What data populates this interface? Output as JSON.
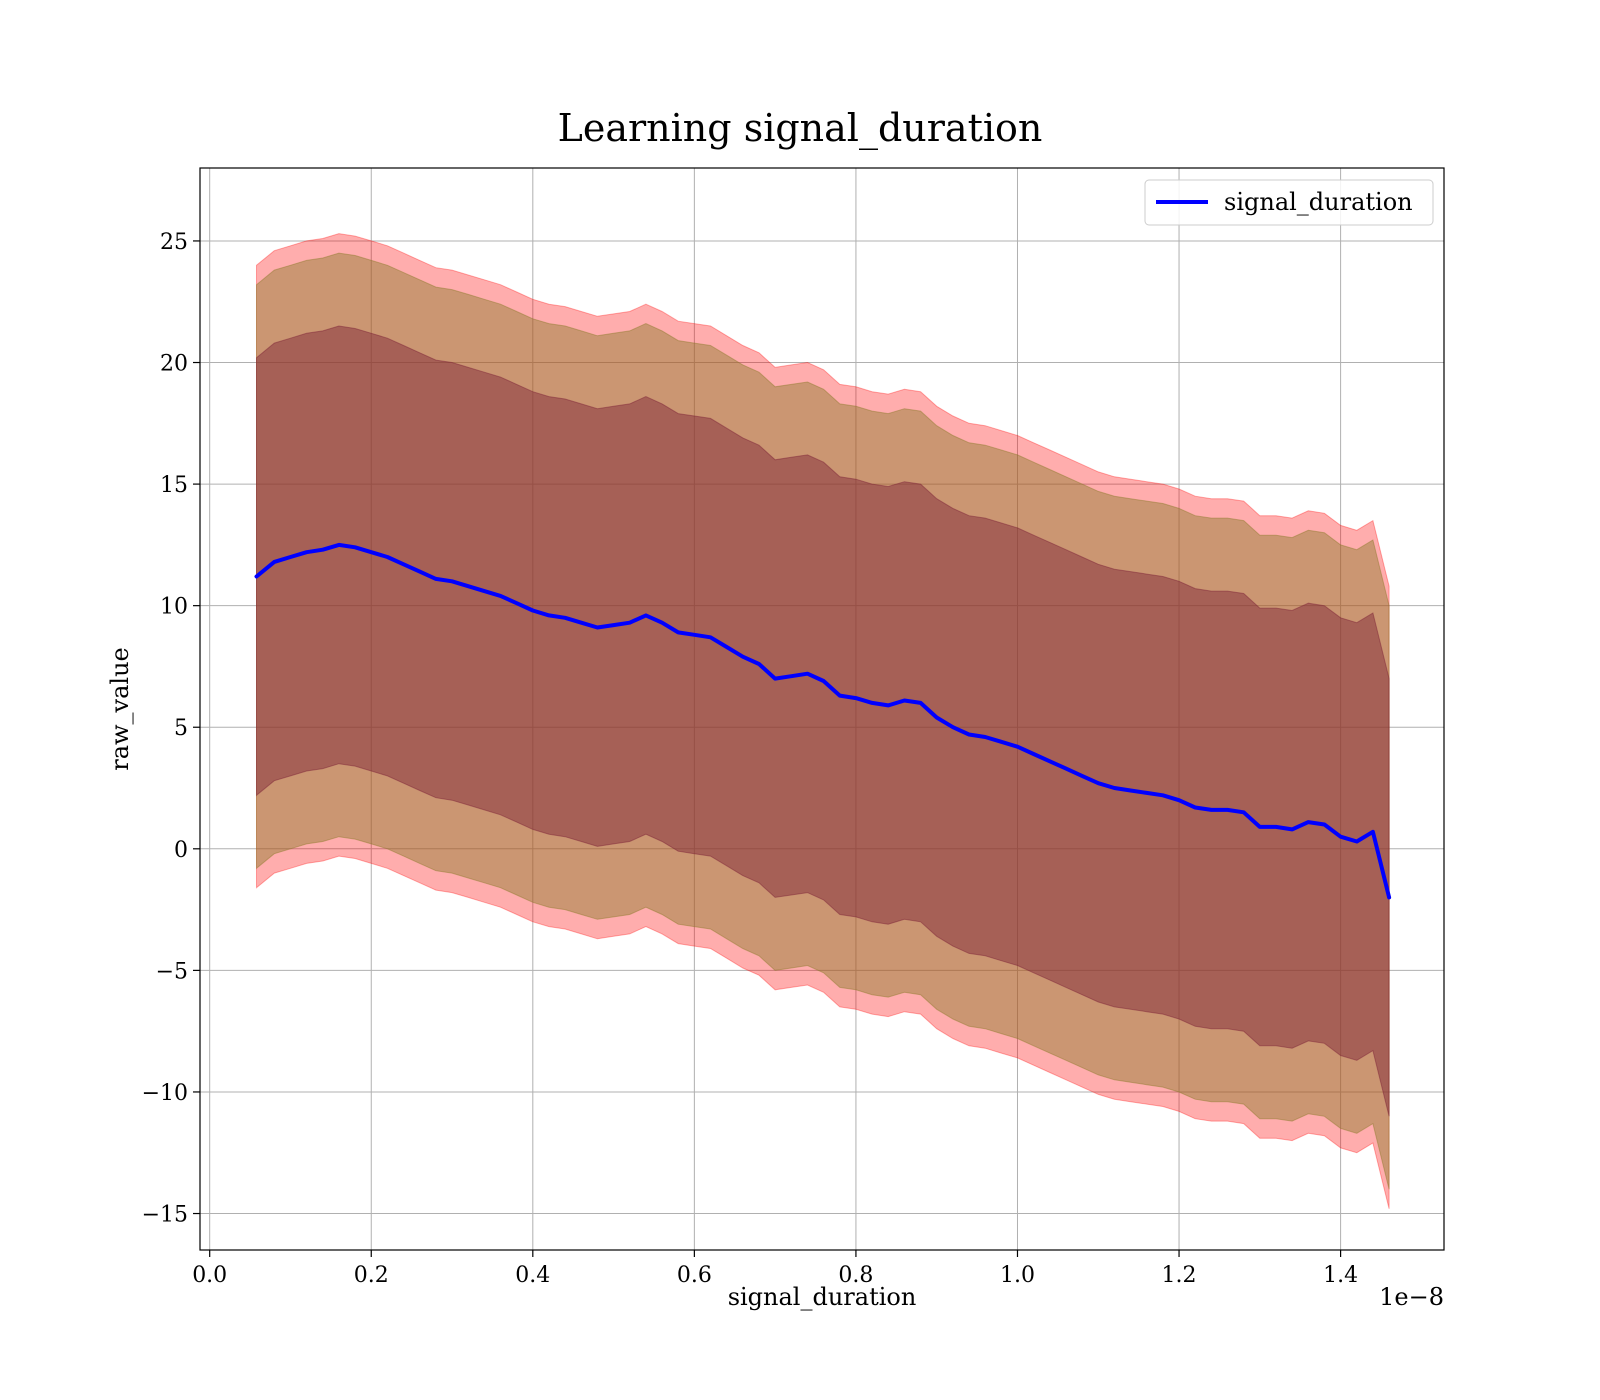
{
  "chart_data": {
    "type": "area",
    "title": "Learning signal_duration",
    "xlabel": "signal_duration",
    "ylabel": "raw_value",
    "x_offset_label": "1e−8",
    "xlim": [
      -0.012,
      1.528
    ],
    "ylim": [
      -16.5,
      28
    ],
    "x_ticks": [
      0.0,
      0.2,
      0.4,
      0.6,
      0.8,
      1.0,
      1.2,
      1.4
    ],
    "x_tick_labels": [
      "0.0",
      "0.2",
      "0.4",
      "0.6",
      "0.8",
      "1.0",
      "1.2",
      "1.4"
    ],
    "y_ticks": [
      -15,
      -10,
      -5,
      0,
      5,
      10,
      15,
      20,
      25
    ],
    "y_tick_labels": [
      "−15",
      "−10",
      "−5",
      "0",
      "5",
      "10",
      "15",
      "20",
      "25"
    ],
    "grid": true,
    "legend": {
      "position": "top-right",
      "entries": [
        "signal_duration"
      ]
    },
    "series": [
      {
        "name": "signal_duration",
        "color": "#0000ff",
        "x": [
          0.058,
          0.08,
          0.1,
          0.12,
          0.14,
          0.16,
          0.18,
          0.2,
          0.22,
          0.24,
          0.26,
          0.28,
          0.3,
          0.32,
          0.34,
          0.36,
          0.38,
          0.4,
          0.42,
          0.44,
          0.46,
          0.48,
          0.5,
          0.52,
          0.54,
          0.56,
          0.58,
          0.6,
          0.62,
          0.64,
          0.66,
          0.68,
          0.7,
          0.72,
          0.74,
          0.76,
          0.78,
          0.8,
          0.82,
          0.84,
          0.86,
          0.88,
          0.9,
          0.92,
          0.94,
          0.96,
          0.98,
          1.0,
          1.02,
          1.04,
          1.06,
          1.08,
          1.1,
          1.12,
          1.14,
          1.16,
          1.18,
          1.2,
          1.22,
          1.24,
          1.26,
          1.28,
          1.3,
          1.32,
          1.34,
          1.36,
          1.38,
          1.4,
          1.42,
          1.44,
          1.46
        ],
        "y": [
          11.2,
          11.8,
          12.0,
          12.2,
          12.3,
          12.5,
          12.4,
          12.2,
          12.0,
          11.7,
          11.4,
          11.1,
          11.0,
          10.8,
          10.6,
          10.4,
          10.1,
          9.8,
          9.6,
          9.5,
          9.3,
          9.1,
          9.2,
          9.3,
          9.6,
          9.3,
          8.9,
          8.8,
          8.7,
          8.3,
          7.9,
          7.6,
          7.0,
          7.1,
          7.2,
          6.9,
          6.3,
          6.2,
          6.0,
          5.9,
          6.1,
          6.0,
          5.4,
          5.0,
          4.7,
          4.6,
          4.4,
          4.2,
          3.9,
          3.6,
          3.3,
          3.0,
          2.7,
          2.5,
          2.4,
          2.3,
          2.2,
          2.0,
          1.7,
          1.6,
          1.6,
          1.5,
          0.9,
          0.9,
          0.8,
          1.1,
          1.0,
          0.5,
          0.3,
          0.7,
          -2.0
        ],
        "band_inner": {
          "color": "#7a1e36",
          "opacity": 0.45,
          "half_width": [
            9.0,
            9.0,
            9.0,
            9.0,
            9.0,
            9.0,
            9.0,
            9.0,
            9.0,
            9.0,
            9.0,
            9.0,
            9.0,
            9.0,
            9.0,
            9.0,
            9.0,
            9.0,
            9.0,
            9.0,
            9.0,
            9.0,
            9.0,
            9.0,
            9.0,
            9.0,
            9.0,
            9.0,
            9.0,
            9.0,
            9.0,
            9.0,
            9.0,
            9.0,
            9.0,
            9.0,
            9.0,
            9.0,
            9.0,
            9.0,
            9.0,
            9.0,
            9.0,
            9.0,
            9.0,
            9.0,
            9.0,
            9.0,
            9.0,
            9.0,
            9.0,
            9.0,
            9.0,
            9.0,
            9.0,
            9.0,
            9.0,
            9.0,
            9.0,
            9.0,
            9.0,
            9.0,
            9.0,
            9.0,
            9.0,
            9.0,
            9.0,
            9.0,
            9.0,
            9.0,
            9.0
          ]
        },
        "band_middle": {
          "color": "#8c7a2a",
          "opacity": 0.45,
          "half_width": [
            12.0,
            12.0,
            12.0,
            12.0,
            12.0,
            12.0,
            12.0,
            12.0,
            12.0,
            12.0,
            12.0,
            12.0,
            12.0,
            12.0,
            12.0,
            12.0,
            12.0,
            12.0,
            12.0,
            12.0,
            12.0,
            12.0,
            12.0,
            12.0,
            12.0,
            12.0,
            12.0,
            12.0,
            12.0,
            12.0,
            12.0,
            12.0,
            12.0,
            12.0,
            12.0,
            12.0,
            12.0,
            12.0,
            12.0,
            12.0,
            12.0,
            12.0,
            12.0,
            12.0,
            12.0,
            12.0,
            12.0,
            12.0,
            12.0,
            12.0,
            12.0,
            12.0,
            12.0,
            12.0,
            12.0,
            12.0,
            12.0,
            12.0,
            12.0,
            12.0,
            12.0,
            12.0,
            12.0,
            12.0,
            12.0,
            12.0,
            12.0,
            12.0,
            12.0,
            12.0,
            12.0
          ]
        },
        "band_outer": {
          "color": "#ff0000",
          "opacity": 0.32,
          "half_width": [
            12.8,
            12.8,
            12.8,
            12.8,
            12.8,
            12.8,
            12.8,
            12.8,
            12.8,
            12.8,
            12.8,
            12.8,
            12.8,
            12.8,
            12.8,
            12.8,
            12.8,
            12.8,
            12.8,
            12.8,
            12.8,
            12.8,
            12.8,
            12.8,
            12.8,
            12.8,
            12.8,
            12.8,
            12.8,
            12.8,
            12.8,
            12.8,
            12.8,
            12.8,
            12.8,
            12.8,
            12.8,
            12.8,
            12.8,
            12.8,
            12.8,
            12.8,
            12.8,
            12.8,
            12.8,
            12.8,
            12.8,
            12.8,
            12.8,
            12.8,
            12.8,
            12.8,
            12.8,
            12.8,
            12.8,
            12.8,
            12.8,
            12.8,
            12.8,
            12.8,
            12.8,
            12.8,
            12.8,
            12.8,
            12.8,
            12.8,
            12.8,
            12.8,
            12.8,
            12.8,
            12.8
          ]
        }
      }
    ]
  }
}
